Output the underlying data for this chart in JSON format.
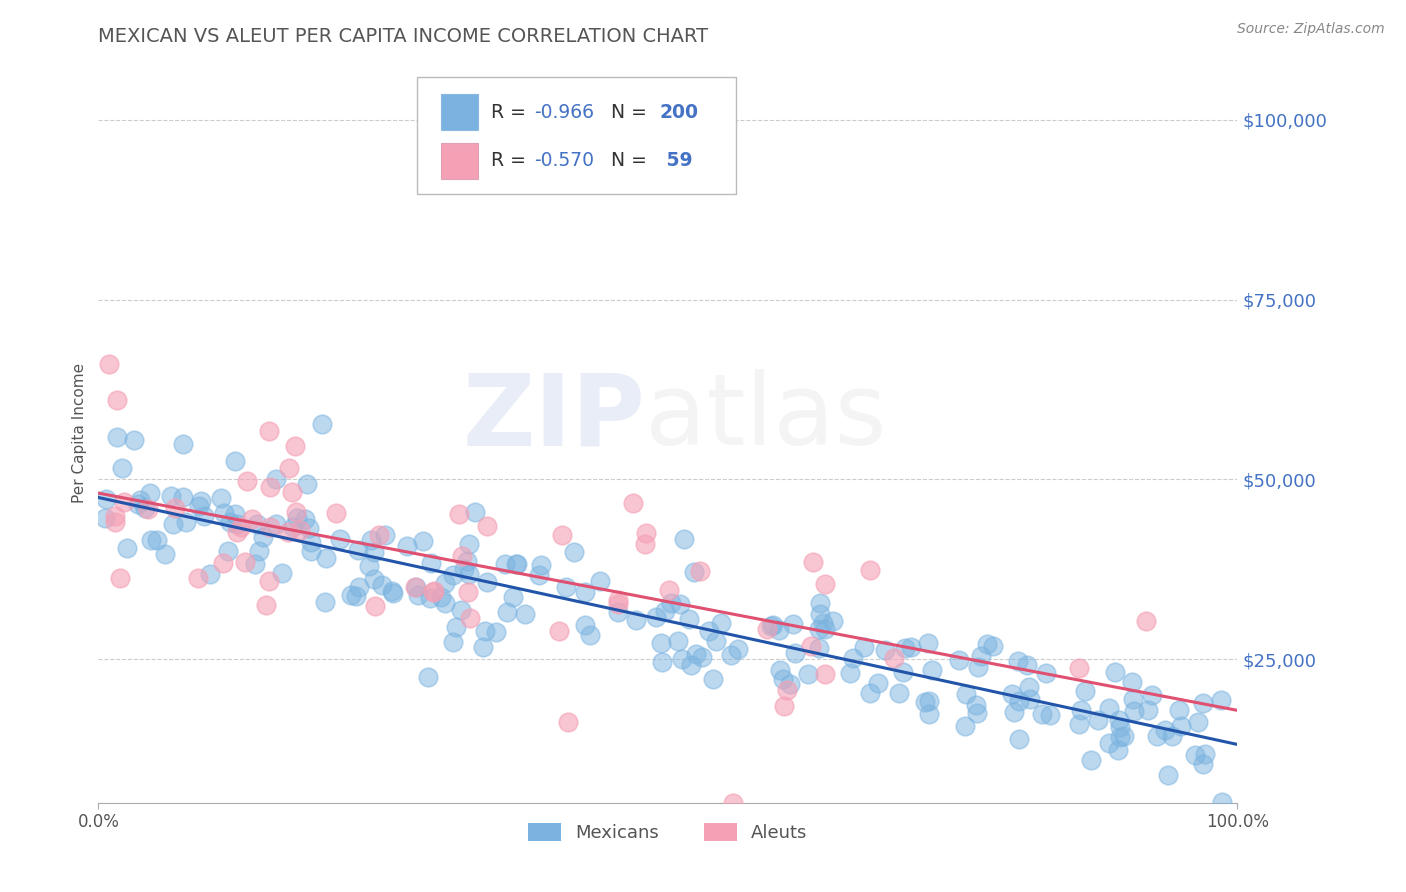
{
  "title": "MEXICAN VS ALEUT PER CAPITA INCOME CORRELATION CHART",
  "source": "Source: ZipAtlas.com",
  "ylabel": "Per Capita Income",
  "yticks": [
    0,
    25000,
    50000,
    75000,
    100000
  ],
  "ytick_labels": [
    "",
    "$25,000",
    "$50,000",
    "$75,000",
    "$100,000"
  ],
  "xlim": [
    0,
    1.0
  ],
  "ylim": [
    5000,
    108000
  ],
  "title_color": "#555555",
  "title_fontsize": 14,
  "blue_color": "#7ab3e0",
  "pink_color": "#f4a0b5",
  "blue_line_color": "#2255aa",
  "pink_line_color": "#e05070",
  "ytick_color": "#4472c4",
  "grid_color": "#cccccc",
  "background_color": "#ffffff",
  "legend_R_blue": "-0.966",
  "legend_N_blue": "200",
  "legend_R_pink": "-0.570",
  "legend_N_pink": "59",
  "n_mexican": 200,
  "n_aleut": 59,
  "R_mexican": -0.966,
  "R_aleut": -0.57,
  "seed_mexican": 42,
  "seed_aleut": 7
}
